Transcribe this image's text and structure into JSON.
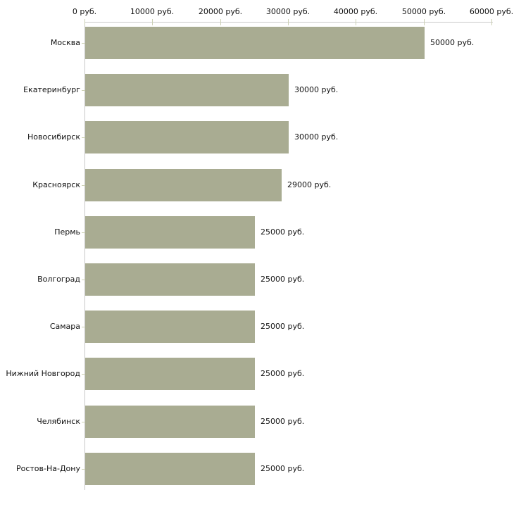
{
  "chart_data": {
    "type": "bar",
    "orientation": "horizontal",
    "title": "",
    "xlabel": "",
    "ylabel": "",
    "categories": [
      "Москва",
      "Екатеринбург",
      "Новосибирск",
      "Красноярск",
      "Пермь",
      "Волгоград",
      "Самара",
      "Нижний Новгород",
      "Челябинск",
      "Ростов-На-Дону"
    ],
    "values": [
      50000,
      30000,
      30000,
      29000,
      25000,
      25000,
      25000,
      25000,
      25000,
      25000
    ],
    "value_labels": [
      "50000 руб.",
      "30000 руб.",
      "30000 руб.",
      "29000 руб.",
      "25000 руб.",
      "25000 руб.",
      "25000 руб.",
      "25000 руб.",
      "25000 руб.",
      "25000 руб."
    ],
    "unit": "руб.",
    "xlim": [
      0,
      60000
    ],
    "x_axis": {
      "position": "top",
      "ticks": [
        0,
        10000,
        20000,
        30000,
        40000,
        50000,
        60000
      ],
      "tick_labels": [
        "0 руб.",
        "10000 руб.",
        "20000 руб.",
        "30000 руб.",
        "40000 руб.",
        "50000 руб.",
        "60000 руб."
      ]
    },
    "grid": false,
    "legend": false,
    "colors": {
      "bar": "#a9ac92",
      "axis": "#c9c9c9",
      "tick": "#ccd0b4",
      "text": "#111111",
      "background": "#ffffff"
    }
  }
}
